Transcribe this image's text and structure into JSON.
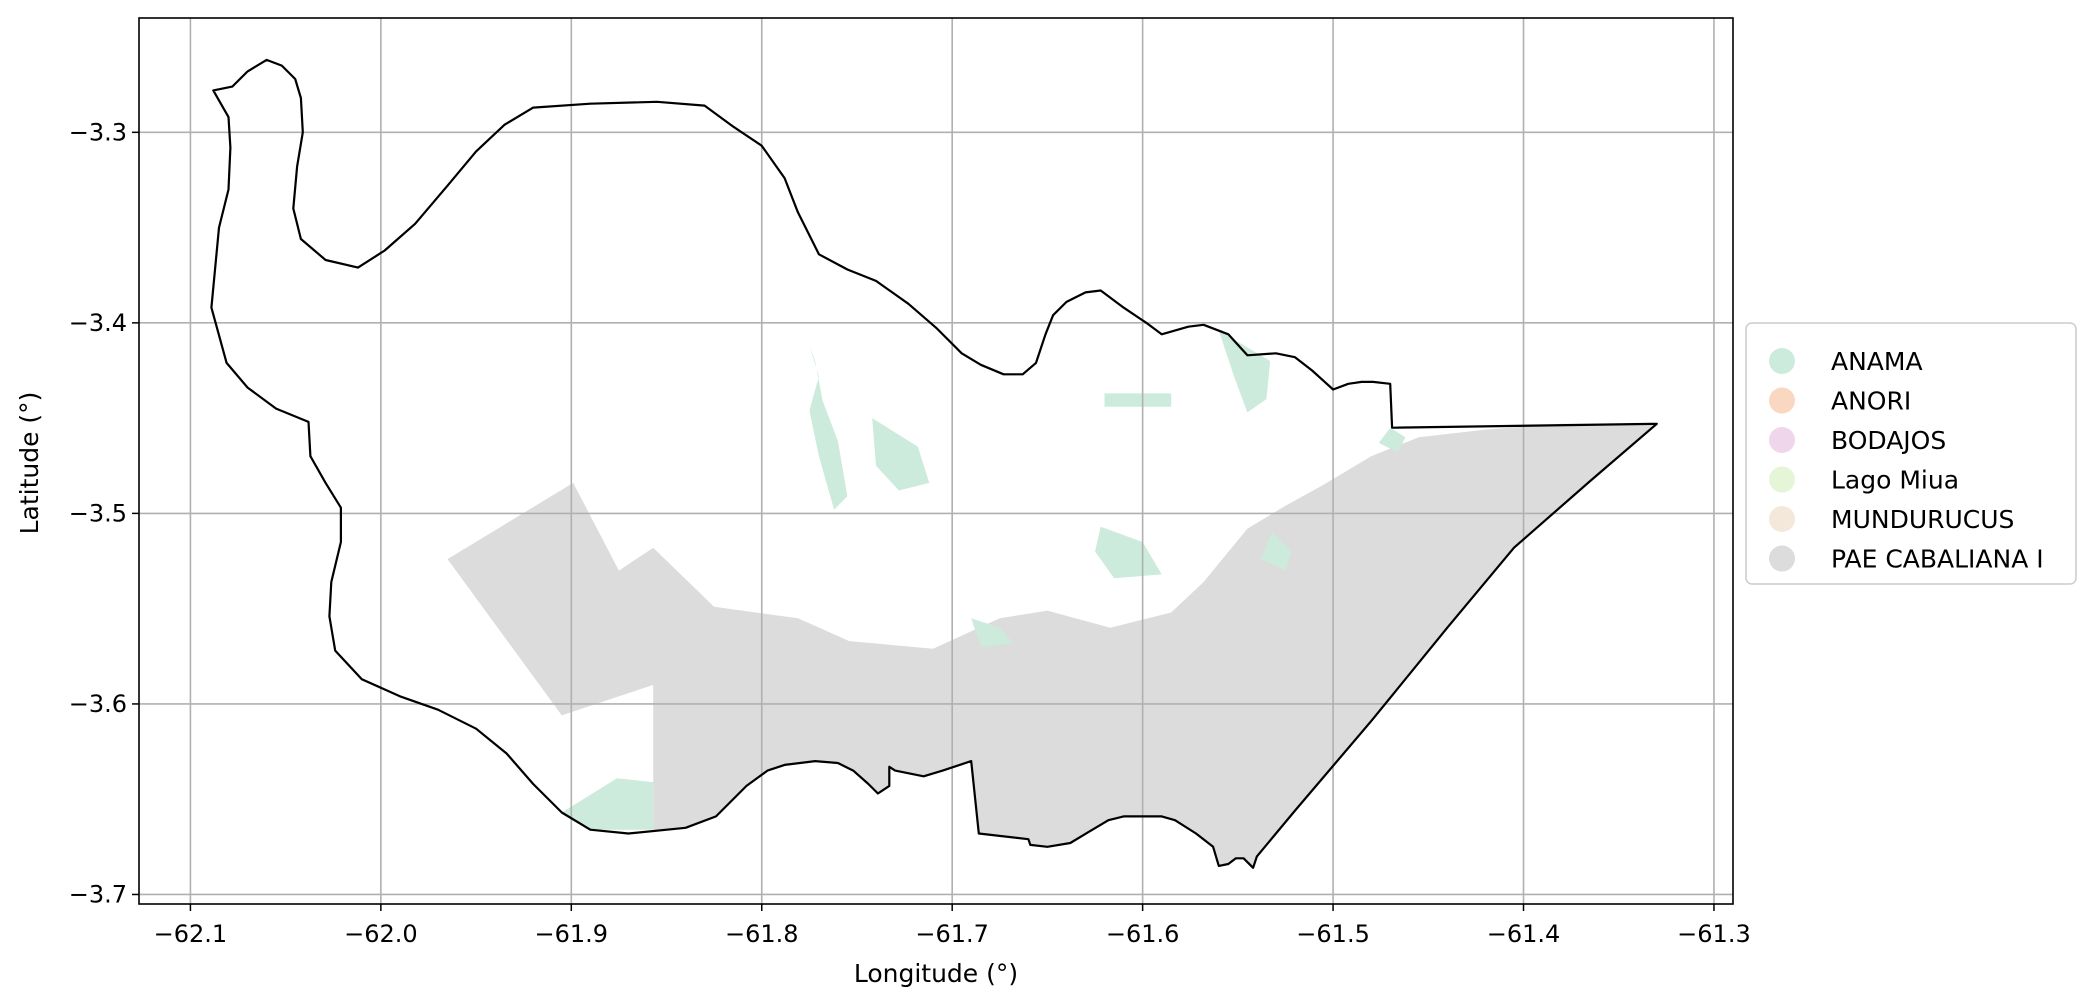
{
  "map": {
    "type": "choropleth",
    "xlabel": "Longitude (°)",
    "ylabel": "Latitude (°)",
    "xlim": [
      -62.127,
      -61.29
    ],
    "ylim": [
      -3.705,
      -3.24
    ],
    "grid": true,
    "legend_position": "right",
    "x_ticks": [
      -62.1,
      -62.0,
      -61.9,
      -61.8,
      -61.7,
      -61.6,
      -61.5,
      -61.4,
      -61.3
    ],
    "y_ticks": [
      -3.3,
      -3.4,
      -3.5,
      -3.6,
      -3.7
    ],
    "x_tick_labels": [
      "−62.1",
      "−62.0",
      "−61.9",
      "−61.8",
      "−61.7",
      "−61.6",
      "−61.5",
      "−61.4",
      "−61.3"
    ],
    "y_tick_labels": [
      "−3.3",
      "−3.4",
      "−3.5",
      "−3.6",
      "−3.7"
    ],
    "categories": [
      {
        "name": "ANAMA",
        "color": "#cdebdc"
      },
      {
        "name": "ANORI",
        "color": "#f9d7c0"
      },
      {
        "name": "BODAJOS",
        "color": "#f0d6ea"
      },
      {
        "name": "Lago Miua",
        "color": "#e5f5d7"
      },
      {
        "name": "MUNDURUCUS",
        "color": "#f3e8da"
      },
      {
        "name": "PAE CABALIANA I",
        "color": "#dcdcdc"
      }
    ],
    "boundary": [
      [
        -62.088,
        -3.278
      ],
      [
        -62.078,
        -3.276
      ],
      [
        -62.07,
        -3.268
      ],
      [
        -62.06,
        -3.262
      ],
      [
        -62.052,
        -3.265
      ],
      [
        -62.045,
        -3.272
      ],
      [
        -62.042,
        -3.282
      ],
      [
        -62.041,
        -3.3
      ],
      [
        -62.044,
        -3.318
      ],
      [
        -62.046,
        -3.34
      ],
      [
        -62.042,
        -3.356
      ],
      [
        -62.029,
        -3.367
      ],
      [
        -62.012,
        -3.371
      ],
      [
        -61.998,
        -3.362
      ],
      [
        -61.982,
        -3.348
      ],
      [
        -61.965,
        -3.328
      ],
      [
        -61.95,
        -3.31
      ],
      [
        -61.935,
        -3.296
      ],
      [
        -61.92,
        -3.287
      ],
      [
        -61.89,
        -3.285
      ],
      [
        -61.855,
        -3.284
      ],
      [
        -61.83,
        -3.286
      ],
      [
        -61.815,
        -3.297
      ],
      [
        -61.8,
        -3.307
      ],
      [
        -61.788,
        -3.324
      ],
      [
        -61.781,
        -3.342
      ],
      [
        -61.77,
        -3.364
      ],
      [
        -61.755,
        -3.372
      ],
      [
        -61.74,
        -3.378
      ],
      [
        -61.723,
        -3.39
      ],
      [
        -61.708,
        -3.403
      ],
      [
        -61.695,
        -3.416
      ],
      [
        -61.685,
        -3.422
      ],
      [
        -61.673,
        -3.427
      ],
      [
        -61.663,
        -3.427
      ],
      [
        -61.656,
        -3.421
      ],
      [
        -61.651,
        -3.406
      ],
      [
        -61.647,
        -3.396
      ],
      [
        -61.64,
        -3.389
      ],
      [
        -61.63,
        -3.384
      ],
      [
        -61.622,
        -3.383
      ],
      [
        -61.61,
        -3.392
      ],
      [
        -61.598,
        -3.4
      ],
      [
        -61.59,
        -3.406
      ],
      [
        -61.576,
        -3.402
      ],
      [
        -61.568,
        -3.401
      ],
      [
        -61.555,
        -3.406
      ],
      [
        -61.545,
        -3.417
      ],
      [
        -61.53,
        -3.416
      ],
      [
        -61.52,
        -3.418
      ],
      [
        -61.511,
        -3.425
      ],
      [
        -61.5,
        -3.435
      ],
      [
        -61.492,
        -3.432
      ],
      [
        -61.485,
        -3.431
      ],
      [
        -61.479,
        -3.431
      ],
      [
        -61.47,
        -3.432
      ],
      [
        -61.469,
        -3.455
      ],
      [
        -61.33,
        -3.453
      ],
      [
        -61.365,
        -3.483
      ],
      [
        -61.405,
        -3.518
      ],
      [
        -61.44,
        -3.56
      ],
      [
        -61.48,
        -3.609
      ],
      [
        -61.52,
        -3.656
      ],
      [
        -61.54,
        -3.68
      ],
      [
        -61.542,
        -3.686
      ],
      [
        -61.547,
        -3.681
      ],
      [
        -61.551,
        -3.681
      ],
      [
        -61.555,
        -3.684
      ],
      [
        -61.56,
        -3.685
      ],
      [
        -61.563,
        -3.675
      ],
      [
        -61.572,
        -3.668
      ],
      [
        -61.583,
        -3.661
      ],
      [
        -61.59,
        -3.659
      ],
      [
        -61.61,
        -3.659
      ],
      [
        -61.618,
        -3.661
      ],
      [
        -61.628,
        -3.667
      ],
      [
        -61.638,
        -3.673
      ],
      [
        -61.65,
        -3.675
      ],
      [
        -61.659,
        -3.674
      ],
      [
        -61.66,
        -3.671
      ],
      [
        -61.686,
        -3.668
      ],
      [
        -61.69,
        -3.63
      ],
      [
        -61.705,
        -3.635
      ],
      [
        -61.715,
        -3.638
      ],
      [
        -61.73,
        -3.635
      ],
      [
        -61.733,
        -3.633
      ],
      [
        -61.733,
        -3.643
      ],
      [
        -61.739,
        -3.647
      ],
      [
        -61.744,
        -3.642
      ],
      [
        -61.752,
        -3.635
      ],
      [
        -61.76,
        -3.631
      ],
      [
        -61.772,
        -3.63
      ],
      [
        -61.788,
        -3.632
      ],
      [
        -61.797,
        -3.635
      ],
      [
        -61.808,
        -3.643
      ],
      [
        -61.818,
        -3.653
      ],
      [
        -61.824,
        -3.659
      ],
      [
        -61.84,
        -3.665
      ],
      [
        -61.87,
        -3.668
      ],
      [
        -61.89,
        -3.666
      ],
      [
        -61.905,
        -3.657
      ],
      [
        -61.92,
        -3.642
      ],
      [
        -61.934,
        -3.626
      ],
      [
        -61.95,
        -3.613
      ],
      [
        -61.97,
        -3.603
      ],
      [
        -61.99,
        -3.596
      ],
      [
        -62.01,
        -3.587
      ],
      [
        -62.024,
        -3.572
      ],
      [
        -62.027,
        -3.554
      ],
      [
        -62.026,
        -3.536
      ],
      [
        -62.021,
        -3.515
      ],
      [
        -62.021,
        -3.497
      ],
      [
        -62.029,
        -3.484
      ],
      [
        -62.037,
        -3.47
      ],
      [
        -62.038,
        -3.452
      ],
      [
        -62.055,
        -3.445
      ],
      [
        -62.07,
        -3.434
      ],
      [
        -62.081,
        -3.421
      ],
      [
        -62.089,
        -3.392
      ],
      [
        -62.085,
        -3.35
      ],
      [
        -62.08,
        -3.33
      ],
      [
        -62.079,
        -3.308
      ],
      [
        -62.08,
        -3.292
      ],
      [
        -62.088,
        -3.278
      ]
    ],
    "regions": [
      {
        "category": "PAE CABALIANA I",
        "polygons": [
          [
            [
              -61.965,
              -3.524
            ],
            [
              -61.899,
              -3.484
            ],
            [
              -61.875,
              -3.53
            ],
            [
              -61.857,
              -3.518
            ],
            [
              -61.825,
              -3.549
            ],
            [
              -61.781,
              -3.555
            ],
            [
              -61.754,
              -3.567
            ],
            [
              -61.71,
              -3.571
            ],
            [
              -61.675,
              -3.555
            ],
            [
              -61.65,
              -3.551
            ],
            [
              -61.617,
              -3.56
            ],
            [
              -61.585,
              -3.552
            ],
            [
              -61.568,
              -3.536
            ],
            [
              -61.545,
              -3.508
            ],
            [
              -61.525,
              -3.496
            ],
            [
              -61.505,
              -3.485
            ],
            [
              -61.48,
              -3.47
            ],
            [
              -61.455,
              -3.46
            ],
            [
              -61.42,
              -3.456
            ],
            [
              -61.38,
              -3.453
            ],
            [
              -61.33,
              -3.453
            ],
            [
              -61.365,
              -3.483
            ],
            [
              -61.405,
              -3.518
            ],
            [
              -61.44,
              -3.56
            ],
            [
              -61.48,
              -3.609
            ],
            [
              -61.52,
              -3.656
            ],
            [
              -61.54,
              -3.68
            ],
            [
              -61.542,
              -3.686
            ],
            [
              -61.547,
              -3.681
            ],
            [
              -61.551,
              -3.681
            ],
            [
              -61.555,
              -3.684
            ],
            [
              -61.56,
              -3.685
            ],
            [
              -61.563,
              -3.675
            ],
            [
              -61.572,
              -3.668
            ],
            [
              -61.583,
              -3.661
            ],
            [
              -61.59,
              -3.659
            ],
            [
              -61.61,
              -3.659
            ],
            [
              -61.618,
              -3.661
            ],
            [
              -61.628,
              -3.667
            ],
            [
              -61.638,
              -3.673
            ],
            [
              -61.65,
              -3.675
            ],
            [
              -61.659,
              -3.674
            ],
            [
              -61.66,
              -3.671
            ],
            [
              -61.686,
              -3.668
            ],
            [
              -61.69,
              -3.63
            ],
            [
              -61.705,
              -3.635
            ],
            [
              -61.715,
              -3.638
            ],
            [
              -61.73,
              -3.635
            ],
            [
              -61.733,
              -3.633
            ],
            [
              -61.733,
              -3.643
            ],
            [
              -61.739,
              -3.647
            ],
            [
              -61.744,
              -3.642
            ],
            [
              -61.752,
              -3.635
            ],
            [
              -61.76,
              -3.631
            ],
            [
              -61.772,
              -3.63
            ],
            [
              -61.788,
              -3.632
            ],
            [
              -61.797,
              -3.635
            ],
            [
              -61.808,
              -3.643
            ],
            [
              -61.818,
              -3.653
            ],
            [
              -61.824,
              -3.659
            ],
            [
              -61.84,
              -3.665
            ],
            [
              -61.857,
              -3.666
            ],
            [
              -61.857,
              -3.59
            ],
            [
              -61.905,
              -3.606
            ]
          ]
        ]
      },
      {
        "category": "ANAMA",
        "polygons": [
          [
            [
              -61.905,
              -3.657
            ],
            [
              -61.876,
              -3.639
            ],
            [
              -61.857,
              -3.641
            ],
            [
              -61.857,
              -3.666
            ],
            [
              -61.89,
              -3.666
            ]
          ],
          [
            [
              -61.775,
              -3.412
            ],
            [
              -61.77,
              -3.428
            ],
            [
              -61.775,
              -3.446
            ],
            [
              -61.77,
              -3.47
            ],
            [
              -61.762,
              -3.498
            ],
            [
              -61.755,
              -3.491
            ],
            [
              -61.76,
              -3.462
            ],
            [
              -61.768,
              -3.441
            ],
            [
              -61.772,
              -3.42
            ]
          ],
          [
            [
              -61.742,
              -3.45
            ],
            [
              -61.718,
              -3.465
            ],
            [
              -61.712,
              -3.484
            ],
            [
              -61.728,
              -3.488
            ],
            [
              -61.74,
              -3.475
            ]
          ],
          [
            [
              -61.62,
              -3.437
            ],
            [
              -61.62,
              -3.444
            ],
            [
              -61.585,
              -3.444
            ],
            [
              -61.585,
              -3.437
            ]
          ],
          [
            [
              -61.622,
              -3.507
            ],
            [
              -61.6,
              -3.515
            ],
            [
              -61.59,
              -3.532
            ],
            [
              -61.615,
              -3.534
            ],
            [
              -61.625,
              -3.52
            ]
          ],
          [
            [
              -61.56,
              -3.404
            ],
            [
              -61.552,
              -3.428
            ],
            [
              -61.545,
              -3.447
            ],
            [
              -61.535,
              -3.44
            ],
            [
              -61.533,
              -3.42
            ]
          ],
          [
            [
              -61.532,
              -3.51
            ],
            [
              -61.522,
              -3.52
            ],
            [
              -61.525,
              -3.53
            ],
            [
              -61.538,
              -3.524
            ]
          ],
          [
            [
              -61.69,
              -3.555
            ],
            [
              -61.675,
              -3.56
            ],
            [
              -61.668,
              -3.568
            ],
            [
              -61.685,
              -3.57
            ]
          ],
          [
            [
              -61.47,
              -3.455
            ],
            [
              -61.462,
              -3.46
            ],
            [
              -61.466,
              -3.468
            ],
            [
              -61.476,
              -3.463
            ]
          ]
        ]
      }
    ]
  }
}
